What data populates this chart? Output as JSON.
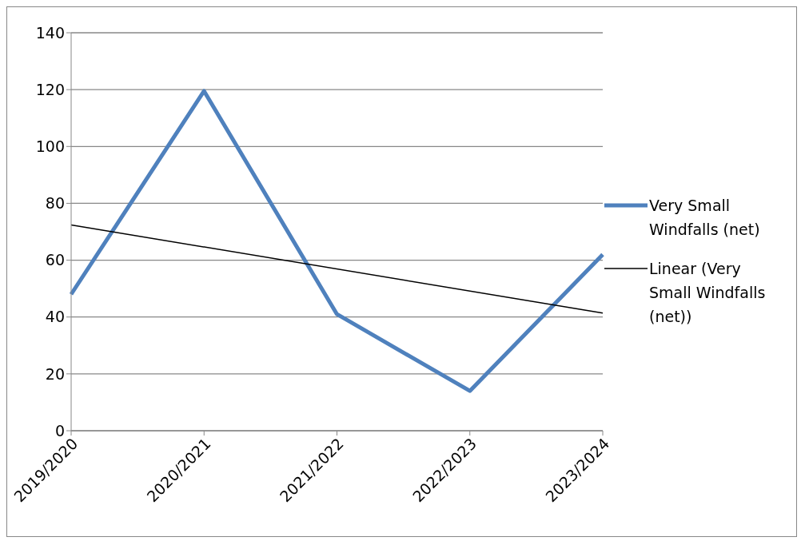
{
  "chart_data": {
    "type": "line",
    "categories": [
      "2019/2020",
      "2020/2021",
      "2021/2022",
      "2022/2023",
      "2023/2024"
    ],
    "series": [
      {
        "name": "Very Small Windfalls (net)",
        "color": "#4f81bd",
        "values": [
          48,
          119.5,
          41,
          14,
          62
        ]
      },
      {
        "name": "Linear (Very Small Windfalls (net))",
        "type": "line",
        "color": "#000000",
        "x": [
          "2019/2020",
          "2023/2024"
        ],
        "values": [
          72.4,
          41.4
        ]
      }
    ],
    "ylim": [
      0,
      140
    ],
    "yticks": [
      0,
      20,
      40,
      60,
      80,
      100,
      120,
      140
    ],
    "grid": "y",
    "legend": "right",
    "marker": "none"
  }
}
